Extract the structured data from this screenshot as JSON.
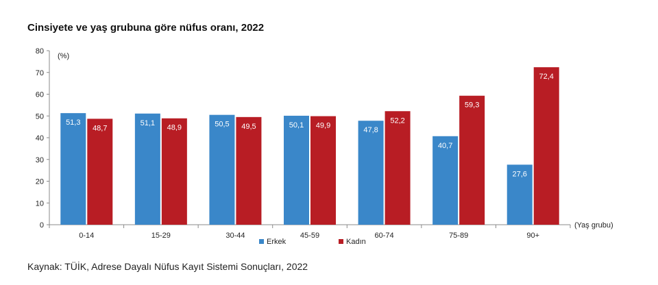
{
  "chart_data": {
    "type": "bar",
    "title": "Cinsiyete ve yaş grubuna göre nüfus oranı, 2022",
    "ylabel": "(%)",
    "xlabel": "(Yaş grubu)",
    "ylim": [
      0,
      80
    ],
    "yticks": [
      "0",
      "10",
      "20",
      "30",
      "40",
      "50",
      "60",
      "70",
      "80"
    ],
    "categories": [
      "0-14",
      "15-29",
      "30-44",
      "45-59",
      "60-74",
      "75-89",
      "90+"
    ],
    "series": [
      {
        "name": "Erkek",
        "color": "#3a87c9",
        "values": [
          51.3,
          51.1,
          50.5,
          50.1,
          47.8,
          40.7,
          27.6
        ],
        "labels": [
          "51,3",
          "51,1",
          "50,5",
          "50,1",
          "47,8",
          "40,7",
          "27,6"
        ]
      },
      {
        "name": "Kadın",
        "color": "#b81d24",
        "values": [
          48.7,
          48.9,
          49.5,
          49.9,
          52.2,
          59.3,
          72.4
        ],
        "labels": [
          "48,7",
          "48,9",
          "49,5",
          "49,9",
          "52,2",
          "59,3",
          "72,4"
        ]
      }
    ],
    "grid": false,
    "legend": "bottom-center",
    "source": "Kaynak: TÜİK, Adrese Dayalı Nüfus Kayıt Sistemi Sonuçları, 2022"
  }
}
